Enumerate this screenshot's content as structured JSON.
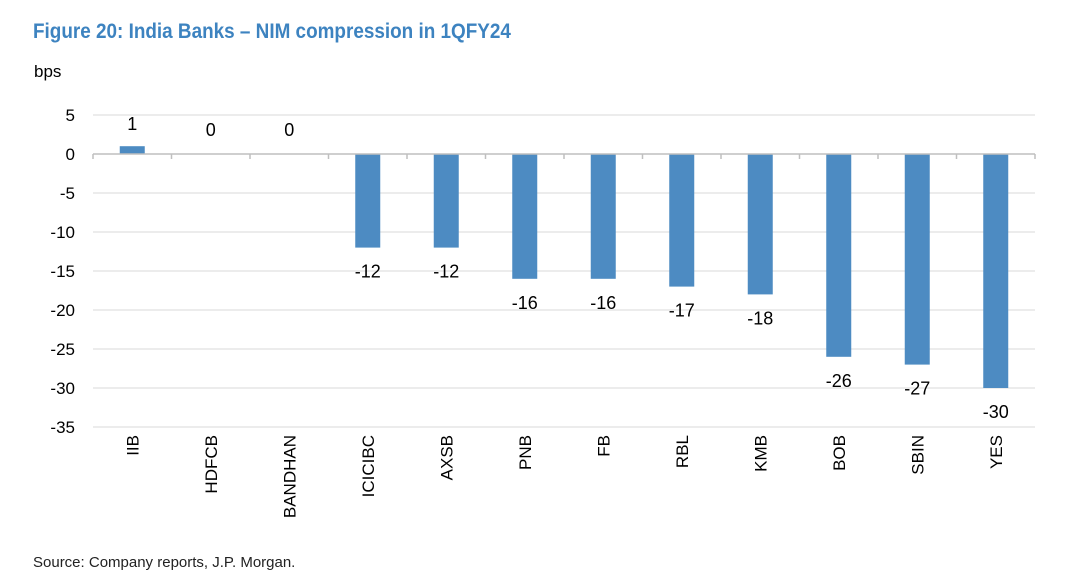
{
  "title": "Figure 20: India Banks – NIM compression in 1QFY24",
  "unit_label": "bps",
  "source": "Source: Company reports, J.P. Morgan.",
  "colors": {
    "bar": "#4d8bc2",
    "grid": "#d9d9d9",
    "title": "#3d83c0"
  },
  "chart_data": {
    "type": "bar",
    "categories": [
      "IIB",
      "HDFCB",
      "BANDHAN",
      "ICICIBC",
      "AXSB",
      "PNB",
      "FB",
      "RBL",
      "KMB",
      "BOB",
      "SBIN",
      "YES"
    ],
    "values": [
      1,
      0,
      0,
      -12,
      -12,
      -16,
      -16,
      -17,
      -18,
      -26,
      -27,
      -30
    ],
    "data_labels": [
      "1",
      "0",
      "0",
      "-12",
      "-12",
      "-16",
      "-16",
      "-17",
      "-18",
      "-26",
      "-27",
      "-30"
    ],
    "ylabel": "bps",
    "ylim": [
      -35,
      5
    ],
    "yticks": [
      5,
      0,
      -5,
      -10,
      -15,
      -20,
      -25,
      -30,
      -35
    ],
    "grid": true
  }
}
